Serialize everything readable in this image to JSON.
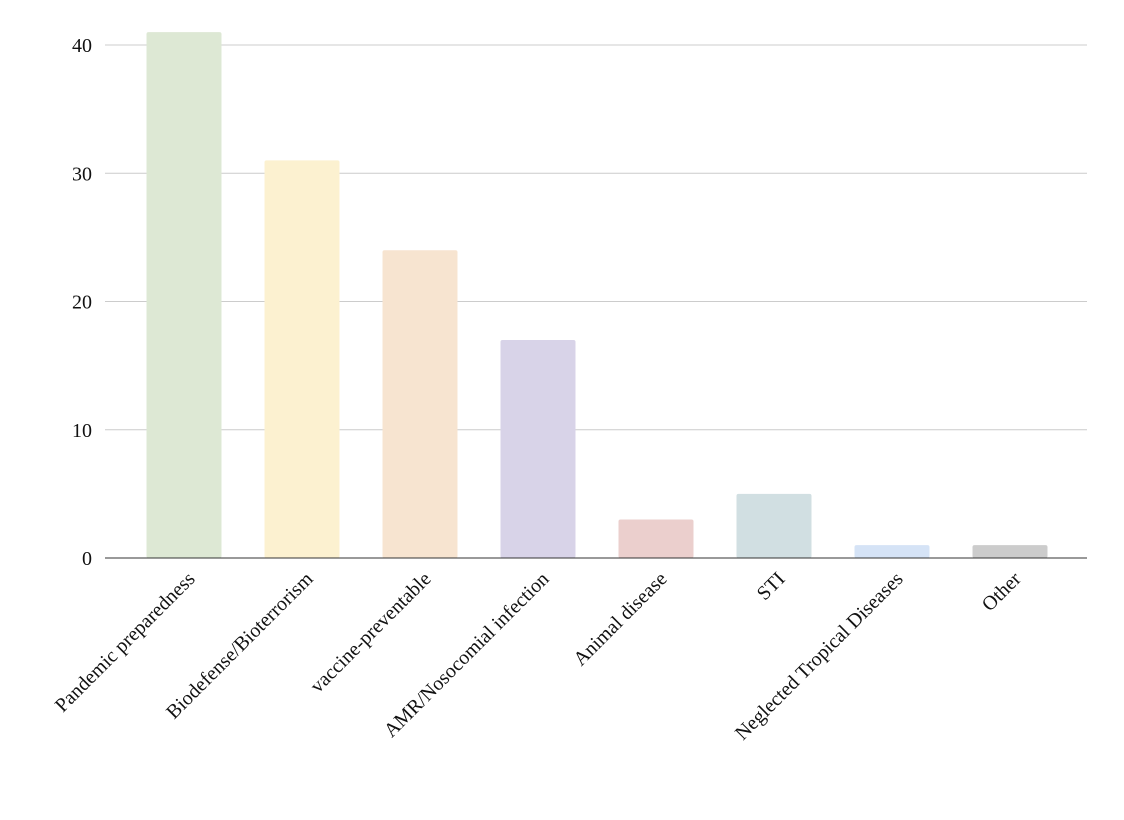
{
  "chart_data": {
    "type": "bar",
    "categories": [
      "Pandemic preparedness",
      "Biodefense/Bioterrorism",
      "vaccine-preventable",
      "AMR/Nosocomial infection",
      "Animal disease",
      "STI",
      "Neglected Tropical Diseases",
      "Other"
    ],
    "values": [
      41,
      31,
      24,
      17,
      3,
      5,
      1,
      1
    ],
    "colors": [
      "#dde8d4",
      "#fcf1d0",
      "#f7e4d0",
      "#d8d3e8",
      "#ebcfcd",
      "#d1dfe2",
      "#d5e3f6",
      "#cccccc"
    ],
    "ylim": [
      0,
      40
    ],
    "yticks": [
      0,
      10,
      20,
      30,
      40
    ],
    "grid": true
  }
}
